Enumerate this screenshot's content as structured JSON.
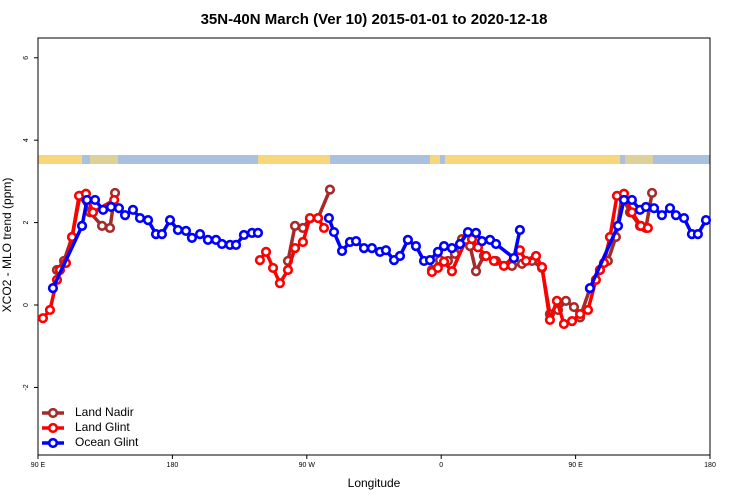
{
  "chart_data": {
    "type": "line",
    "title": "35N-40N March (Ver 10)   2015-01-01 to 2020-12-18",
    "x_label": "Longitude",
    "y_label": "XCO2 - MLO trend (ppm)",
    "xlim": [
      90,
      540
    ],
    "ylim": [
      -3.64,
      6.48
    ],
    "xticks": [
      {
        "value": 90,
        "label": "90 E"
      },
      180,
      {
        "value": 270,
        "label": "90 W"
      },
      {
        "value": 360,
        "label": "0"
      },
      {
        "value": 450,
        "label": "90 E"
      },
      {
        "value": 540,
        "label": "180"
      }
    ],
    "yticks": [
      -2,
      0,
      2,
      4,
      6
    ],
    "legend": "bottom-left",
    "series": [
      {
        "name": "Land Nadir",
        "color": "#a52a2a",
        "x": [
          102.7,
          107.4,
          112.8,
          118.1,
          124.8,
          132.9,
          138.2,
          141.6,
          null,
          257.4,
          262.1,
          267.4,
          272.1,
          277.5,
          285.5,
          null,
          353.8,
          359.2,
          364.5,
          369.2,
          373.9,
          379.3,
          383.3,
          388.6,
          396.7,
          407.4,
          414.1,
          420.8,
          427.5,
          432.8,
          438.2,
          443.5,
          448.9,
          453.0,
          459.6,
          466.3,
          471.6,
          477.0,
          481.1,
          486.4,
          493.1,
          497.1,
          501.2
        ],
        "values": [
          0.85,
          1.07,
          1.65,
          2.65,
          2.25,
          1.92,
          1.87,
          2.72,
          null,
          1.07,
          1.92,
          1.87,
          2.1,
          2.11,
          2.8,
          null,
          0.85,
          1.09,
          1.07,
          1.24,
          1.6,
          1.43,
          0.82,
          1.19,
          1.07,
          0.95,
          1.0,
          1.07,
          0.9,
          -0.22,
          -0.12,
          0.1,
          -0.05,
          -0.3,
          0.4,
          0.85,
          1.07,
          1.65,
          2.65,
          2.25,
          1.92,
          1.87,
          2.72
        ]
      },
      {
        "name": "Land Glint",
        "color": "#ff0000",
        "x": [
          93.3,
          98.0,
          102.7,
          104.7,
          108.7,
          112.8,
          117.5,
          122.1,
          126.8,
          141.0,
          null,
          238.6,
          242.7,
          247.4,
          252.0,
          257.4,
          262.1,
          267.4,
          272.1,
          277.5,
          281.5,
          null,
          353.8,
          357.8,
          361.9,
          367.2,
          376.6,
          380.6,
          384.6,
          390.0,
          395.3,
          402.0,
          412.7,
          416.8,
          423.5,
          427.5,
          432.8,
          437.5,
          442.2,
          447.6,
          453.0,
          458.3,
          463.6,
          466.3,
          469.0,
          473.0,
          477.7,
          482.4,
          487.7,
          493.7,
          498.4
        ],
        "values": [
          -0.32,
          -0.12,
          0.61,
          0.85,
          1.02,
          1.65,
          2.65,
          2.7,
          2.25,
          2.55,
          null,
          1.09,
          1.29,
          0.9,
          0.53,
          0.85,
          1.38,
          1.53,
          2.11,
          2.11,
          1.87,
          null,
          0.8,
          0.9,
          1.05,
          0.82,
          1.58,
          1.6,
          1.4,
          1.19,
          1.07,
          0.95,
          1.33,
          1.07,
          1.19,
          0.92,
          -0.36,
          0.1,
          -0.46,
          -0.39,
          -0.22,
          -0.12,
          0.61,
          0.85,
          1.02,
          1.65,
          2.65,
          2.7,
          2.25,
          1.92,
          1.87
        ]
      },
      {
        "name": "Ocean Glint",
        "color": "#0000ff",
        "x": [
          100.0,
          119.5,
          122.8,
          128.2,
          133.6,
          138.9,
          144.2,
          148.3,
          153.6,
          158.3,
          163.7,
          169.0,
          173.0,
          178.4,
          183.7,
          189.1,
          193.1,
          198.5,
          203.8,
          209.2,
          213.2,
          218.6,
          222.6,
          227.9,
          233.3,
          237.3,
          null,
          284.8,
          288.2,
          293.6,
          298.9,
          303.0,
          308.3,
          313.6,
          319.0,
          323.0,
          328.4,
          332.4,
          337.7,
          343.1,
          348.5,
          352.5,
          357.8,
          361.9,
          367.2,
          372.6,
          377.9,
          383.3,
          387.3,
          392.7,
          396.7,
          408.7,
          412.7,
          null,
          459.6,
          478.4,
          482.4,
          487.7,
          493.1,
          497.1,
          502.5,
          507.8,
          513.2,
          517.2,
          522.6,
          527.9,
          531.9,
          537.3
        ],
        "values": [
          0.41,
          1.92,
          2.55,
          2.55,
          2.31,
          2.38,
          2.35,
          2.18,
          2.31,
          2.11,
          2.06,
          1.72,
          1.72,
          2.06,
          1.82,
          1.8,
          1.63,
          1.72,
          1.58,
          1.58,
          1.48,
          1.46,
          1.46,
          1.7,
          1.75,
          1.75,
          null,
          2.11,
          1.77,
          1.31,
          1.53,
          1.55,
          1.38,
          1.38,
          1.29,
          1.33,
          1.09,
          1.19,
          1.58,
          1.43,
          1.07,
          1.09,
          1.29,
          1.43,
          1.38,
          1.48,
          1.77,
          1.75,
          1.55,
          1.58,
          1.48,
          1.14,
          1.82,
          null,
          0.41,
          1.92,
          2.55,
          2.55,
          2.31,
          2.38,
          2.35,
          2.18,
          2.35,
          2.18,
          2.11,
          1.72,
          1.72,
          2.06
        ]
      }
    ]
  }
}
